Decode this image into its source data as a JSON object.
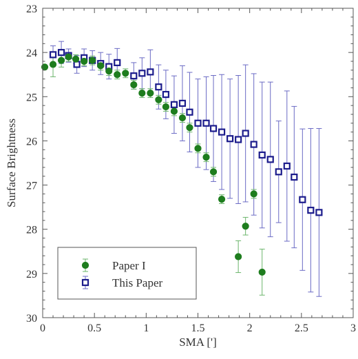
{
  "chart_data": {
    "type": "scatter",
    "xlabel": "SMA [']",
    "ylabel": "Surface Brightness",
    "xlim": [
      0,
      3
    ],
    "ylim": [
      30,
      23
    ],
    "y_inverted": true,
    "grid": false,
    "legend_position": "bottom-left",
    "x_ticks": [
      "0",
      "0.5",
      "1",
      "1.5",
      "2",
      "2.5",
      "3"
    ],
    "y_ticks": [
      "23",
      "24",
      "25",
      "26",
      "27",
      "28",
      "29",
      "30"
    ],
    "series": [
      {
        "name": "Paper I",
        "marker": "filled-circle",
        "color": "#1e7d1e",
        "errcolor": "#6ab46a",
        "points": [
          {
            "x": 0.02,
            "y": 24.33,
            "err": 0.0
          },
          {
            "x": 0.1,
            "y": 24.27,
            "err": 0.28
          },
          {
            "x": 0.18,
            "y": 24.18,
            "err": 0.15
          },
          {
            "x": 0.25,
            "y": 24.1,
            "err": 0.1
          },
          {
            "x": 0.32,
            "y": 24.15,
            "err": 0.1
          },
          {
            "x": 0.4,
            "y": 24.2,
            "err": 0.1
          },
          {
            "x": 0.48,
            "y": 24.18,
            "err": 0.1
          },
          {
            "x": 0.56,
            "y": 24.3,
            "err": 0.1
          },
          {
            "x": 0.64,
            "y": 24.42,
            "err": 0.1
          },
          {
            "x": 0.72,
            "y": 24.5,
            "err": 0.1
          },
          {
            "x": 0.8,
            "y": 24.47,
            "err": 0.1
          },
          {
            "x": 0.88,
            "y": 24.73,
            "err": 0.1
          },
          {
            "x": 0.96,
            "y": 24.92,
            "err": 0.1
          },
          {
            "x": 1.04,
            "y": 24.92,
            "err": 0.1
          },
          {
            "x": 1.12,
            "y": 25.07,
            "err": 0.1
          },
          {
            "x": 1.19,
            "y": 25.23,
            "err": 0.1
          },
          {
            "x": 1.27,
            "y": 25.33,
            "err": 0.1
          },
          {
            "x": 1.35,
            "y": 25.48,
            "err": 0.1
          },
          {
            "x": 1.42,
            "y": 25.7,
            "err": 0.1
          },
          {
            "x": 1.5,
            "y": 26.17,
            "err": 0.1
          },
          {
            "x": 1.58,
            "y": 26.37,
            "err": 0.1
          },
          {
            "x": 1.65,
            "y": 26.7,
            "err": 0.1
          },
          {
            "x": 1.73,
            "y": 27.32,
            "err": 0.1
          },
          {
            "x": 1.89,
            "y": 28.62,
            "err": 0.36
          },
          {
            "x": 1.96,
            "y": 27.93,
            "err": 0.2
          },
          {
            "x": 2.04,
            "y": 27.2,
            "err": 0.1
          },
          {
            "x": 2.12,
            "y": 28.97,
            "err": 0.52
          }
        ]
      },
      {
        "name": "This Paper",
        "marker": "open-square",
        "color": "#1c1c8c",
        "errcolor": "#6a6ac4",
        "points": [
          {
            "x": 0.1,
            "y": 24.05,
            "err": 0.2
          },
          {
            "x": 0.18,
            "y": 24.0,
            "err": 0.25
          },
          {
            "x": 0.25,
            "y": 24.07,
            "err": 0.15
          },
          {
            "x": 0.33,
            "y": 24.27,
            "err": 0.2
          },
          {
            "x": 0.4,
            "y": 24.12,
            "err": 0.2
          },
          {
            "x": 0.48,
            "y": 24.18,
            "err": 0.22
          },
          {
            "x": 0.56,
            "y": 24.25,
            "err": 0.25
          },
          {
            "x": 0.64,
            "y": 24.32,
            "err": 0.28
          },
          {
            "x": 0.72,
            "y": 24.23,
            "err": 0.32
          },
          {
            "x": 0.88,
            "y": 24.53,
            "err": 0.3
          },
          {
            "x": 0.96,
            "y": 24.47,
            "err": 0.35
          },
          {
            "x": 1.04,
            "y": 24.44,
            "err": 0.5
          },
          {
            "x": 1.12,
            "y": 24.78,
            "err": 0.5
          },
          {
            "x": 1.19,
            "y": 24.95,
            "err": 0.55
          },
          {
            "x": 1.27,
            "y": 25.18,
            "err": 0.65
          },
          {
            "x": 1.35,
            "y": 25.15,
            "err": 0.85
          },
          {
            "x": 1.42,
            "y": 25.35,
            "err": 0.9
          },
          {
            "x": 1.5,
            "y": 25.6,
            "err": 1.0
          },
          {
            "x": 1.58,
            "y": 25.6,
            "err": 1.05
          },
          {
            "x": 1.65,
            "y": 25.72,
            "err": 1.2
          },
          {
            "x": 1.73,
            "y": 25.8,
            "err": 1.3
          },
          {
            "x": 1.81,
            "y": 25.95,
            "err": 1.35
          },
          {
            "x": 1.89,
            "y": 25.97,
            "err": 1.45
          },
          {
            "x": 1.96,
            "y": 25.83,
            "err": 1.55
          },
          {
            "x": 2.04,
            "y": 26.08,
            "err": 1.6
          },
          {
            "x": 2.12,
            "y": 26.32,
            "err": 1.65
          },
          {
            "x": 2.2,
            "y": 26.42,
            "err": 1.75
          },
          {
            "x": 2.28,
            "y": 26.7,
            "err": 1.15
          },
          {
            "x": 2.36,
            "y": 26.57,
            "err": 1.7
          },
          {
            "x": 2.43,
            "y": 26.82,
            "err": 1.6
          },
          {
            "x": 2.51,
            "y": 27.33,
            "err": 1.6
          },
          {
            "x": 2.59,
            "y": 27.57,
            "err": 1.85
          },
          {
            "x": 2.67,
            "y": 27.62,
            "err": 1.9
          }
        ]
      }
    ]
  }
}
